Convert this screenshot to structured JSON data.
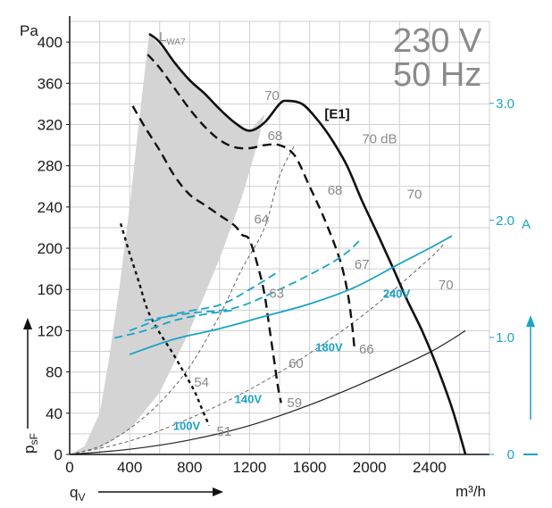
{
  "chart_data": {
    "type": "line",
    "title": "230 V",
    "subtitle": "50 Hz",
    "series_label": "[E1]",
    "xlabel": "qV",
    "xlabel_main": "q",
    "xlabel_sub": "V",
    "xunit": "m³/h",
    "ylabel": "psF",
    "ylabel_main": "p",
    "ylabel_sub": "sF",
    "yunit": "Pa",
    "y2unit": "A",
    "sound_label_main": "L",
    "sound_label_sub": "WA7",
    "xlim": [
      0,
      2800
    ],
    "ylim": [
      0,
      420
    ],
    "y2lim": [
      0,
      3.7
    ],
    "grid": true,
    "x_ticks": [
      "0",
      "400",
      "800",
      "1200",
      "1600",
      "2000",
      "2400"
    ],
    "y_ticks": [
      "0",
      "40",
      "80",
      "120",
      "160",
      "200",
      "240",
      "280",
      "320",
      "360",
      "400"
    ],
    "y2_ticks": [
      "0",
      "1.0",
      "2.0",
      "3.0"
    ],
    "title_color": "#8a8a8a",
    "current_color": "#1aa3c7",
    "curve_color": "#111111",
    "shade_color": "#d4d4d4",
    "pressure_curves": [
      {
        "voltage": "240V",
        "style": "solid",
        "points": [
          [
            530,
            408
          ],
          [
            600,
            400
          ],
          [
            700,
            380
          ],
          [
            800,
            363
          ],
          [
            900,
            350
          ],
          [
            1000,
            335
          ],
          [
            1100,
            322
          ],
          [
            1200,
            314
          ],
          [
            1300,
            322
          ],
          [
            1400,
            340
          ],
          [
            1450,
            343
          ],
          [
            1550,
            340
          ],
          [
            1650,
            325
          ],
          [
            1750,
            305
          ],
          [
            1850,
            280
          ],
          [
            1950,
            246
          ],
          [
            2050,
            215
          ],
          [
            2150,
            183
          ],
          [
            2250,
            150
          ],
          [
            2350,
            120
          ],
          [
            2450,
            85
          ],
          [
            2550,
            45
          ],
          [
            2640,
            0
          ]
        ]
      },
      {
        "voltage": "180V",
        "style": "dashed",
        "points": [
          [
            520,
            388
          ],
          [
            600,
            375
          ],
          [
            700,
            355
          ],
          [
            800,
            335
          ],
          [
            900,
            318
          ],
          [
            1000,
            305
          ],
          [
            1100,
            298
          ],
          [
            1200,
            297
          ],
          [
            1300,
            300
          ],
          [
            1400,
            300
          ],
          [
            1500,
            290
          ],
          [
            1600,
            260
          ],
          [
            1700,
            228
          ],
          [
            1800,
            190
          ],
          [
            1850,
            160
          ],
          [
            1880,
            130
          ],
          [
            1900,
            102
          ]
        ]
      },
      {
        "voltage": "140V",
        "style": "dashed",
        "points": [
          [
            420,
            338
          ],
          [
            500,
            318
          ],
          [
            600,
            295
          ],
          [
            700,
            270
          ],
          [
            800,
            252
          ],
          [
            900,
            242
          ],
          [
            1000,
            232
          ],
          [
            1100,
            222
          ],
          [
            1150,
            213
          ],
          [
            1200,
            208
          ],
          [
            1260,
            180
          ],
          [
            1300,
            155
          ],
          [
            1330,
            125
          ],
          [
            1360,
            95
          ],
          [
            1390,
            65
          ],
          [
            1410,
            50
          ]
        ]
      },
      {
        "voltage": "100V",
        "style": "dashed",
        "points": [
          [
            340,
            224
          ],
          [
            400,
            195
          ],
          [
            460,
            168
          ],
          [
            520,
            140
          ],
          [
            600,
            118
          ],
          [
            680,
            100
          ],
          [
            760,
            80
          ],
          [
            830,
            62
          ],
          [
            880,
            45
          ],
          [
            930,
            28
          ]
        ]
      }
    ],
    "current_curves": [
      {
        "voltage": "240V",
        "style": "solid",
        "points": [
          [
            400,
            97
          ],
          [
            700,
            112
          ],
          [
            1000,
            122
          ],
          [
            1300,
            134
          ],
          [
            1600,
            146
          ],
          [
            1900,
            162
          ],
          [
            2200,
            185
          ],
          [
            2400,
            200
          ],
          [
            2550,
            212
          ]
        ]
      },
      {
        "voltage": "180V",
        "style": "dashed",
        "points": [
          [
            500,
            130
          ],
          [
            800,
            137
          ],
          [
            1100,
            142
          ],
          [
            1400,
            160
          ],
          [
            1700,
            182
          ],
          [
            1850,
            196
          ],
          [
            1950,
            210
          ]
        ]
      },
      {
        "voltage": "140V",
        "style": "dashed",
        "points": [
          [
            400,
            120
          ],
          [
            700,
            136
          ],
          [
            1000,
            145
          ],
          [
            1200,
            160
          ],
          [
            1400,
            178
          ]
        ]
      },
      {
        "voltage": "100V",
        "style": "dashed",
        "points": [
          [
            300,
            113
          ],
          [
            500,
            120
          ],
          [
            700,
            130
          ],
          [
            900,
            136
          ],
          [
            1100,
            140
          ]
        ]
      }
    ],
    "system_curves": [
      {
        "style": "solid-thin",
        "points": [
          [
            0,
            0
          ],
          [
            400,
            5
          ],
          [
            800,
            14
          ],
          [
            1200,
            28
          ],
          [
            1600,
            48
          ],
          [
            2000,
            72
          ],
          [
            2400,
            99
          ],
          [
            2640,
            120
          ]
        ]
      },
      {
        "style": "dashed-thin",
        "points": [
          [
            0,
            0
          ],
          [
            400,
            13
          ],
          [
            800,
            35
          ],
          [
            1200,
            63
          ],
          [
            1600,
            98
          ],
          [
            2000,
            140
          ],
          [
            2400,
            190
          ],
          [
            2500,
            205
          ]
        ]
      },
      {
        "style": "dashed-thin",
        "points": [
          [
            0,
            0
          ],
          [
            200,
            8
          ],
          [
            400,
            25
          ],
          [
            600,
            50
          ],
          [
            800,
            85
          ],
          [
            1000,
            135
          ],
          [
            1150,
            180
          ],
          [
            1300,
            220
          ],
          [
            1400,
            270
          ],
          [
            1500,
            300
          ]
        ]
      }
    ],
    "shaded_region": [
      [
        0,
        0
      ],
      [
        100,
        8
      ],
      [
        200,
        40
      ],
      [
        260,
        90
      ],
      [
        330,
        160
      ],
      [
        400,
        240
      ],
      [
        460,
        320
      ],
      [
        500,
        370
      ],
      [
        530,
        408
      ],
      [
        700,
        380
      ],
      [
        900,
        350
      ],
      [
        1100,
        322
      ],
      [
        1200,
        314
      ],
      [
        1300,
        330
      ],
      [
        1250,
        300
      ],
      [
        1150,
        250
      ],
      [
        1000,
        190
      ],
      [
        800,
        120
      ],
      [
        600,
        60
      ],
      [
        400,
        24
      ],
      [
        200,
        6
      ],
      [
        0,
        0
      ]
    ],
    "labels": [
      {
        "text": "70",
        "x": 2460,
        "y": 160,
        "color": "gray"
      },
      {
        "text": "70",
        "x": 2250,
        "y": 248,
        "color": "gray"
      },
      {
        "text": "70 dB",
        "x": 1950,
        "y": 302,
        "color": "gray"
      },
      {
        "text": "70",
        "x": 1300,
        "y": 344,
        "color": "gray"
      },
      {
        "text": "68",
        "x": 1320,
        "y": 305,
        "color": "gray"
      },
      {
        "text": "68",
        "x": 1720,
        "y": 252,
        "color": "gray"
      },
      {
        "text": "67",
        "x": 1900,
        "y": 180,
        "color": "gray"
      },
      {
        "text": "66",
        "x": 1930,
        "y": 98,
        "color": "gray"
      },
      {
        "text": "64",
        "x": 1230,
        "y": 224,
        "color": "gray"
      },
      {
        "text": "63",
        "x": 1330,
        "y": 152,
        "color": "gray"
      },
      {
        "text": "60",
        "x": 1460,
        "y": 84,
        "color": "gray"
      },
      {
        "text": "59",
        "x": 1450,
        "y": 46,
        "color": "gray"
      },
      {
        "text": "54",
        "x": 830,
        "y": 66,
        "color": "gray"
      },
      {
        "text": "51",
        "x": 980,
        "y": 18,
        "color": "gray"
      },
      {
        "text": "240V",
        "x": 2090,
        "y": 152,
        "color": "blue"
      },
      {
        "text": "180V",
        "x": 1640,
        "y": 100,
        "color": "blue"
      },
      {
        "text": "140V",
        "x": 1100,
        "y": 50,
        "color": "blue"
      },
      {
        "text": "100V",
        "x": 690,
        "y": 24,
        "color": "blue"
      },
      {
        "text": "[E1]",
        "x": 1700,
        "y": 326,
        "color": "black"
      }
    ]
  }
}
